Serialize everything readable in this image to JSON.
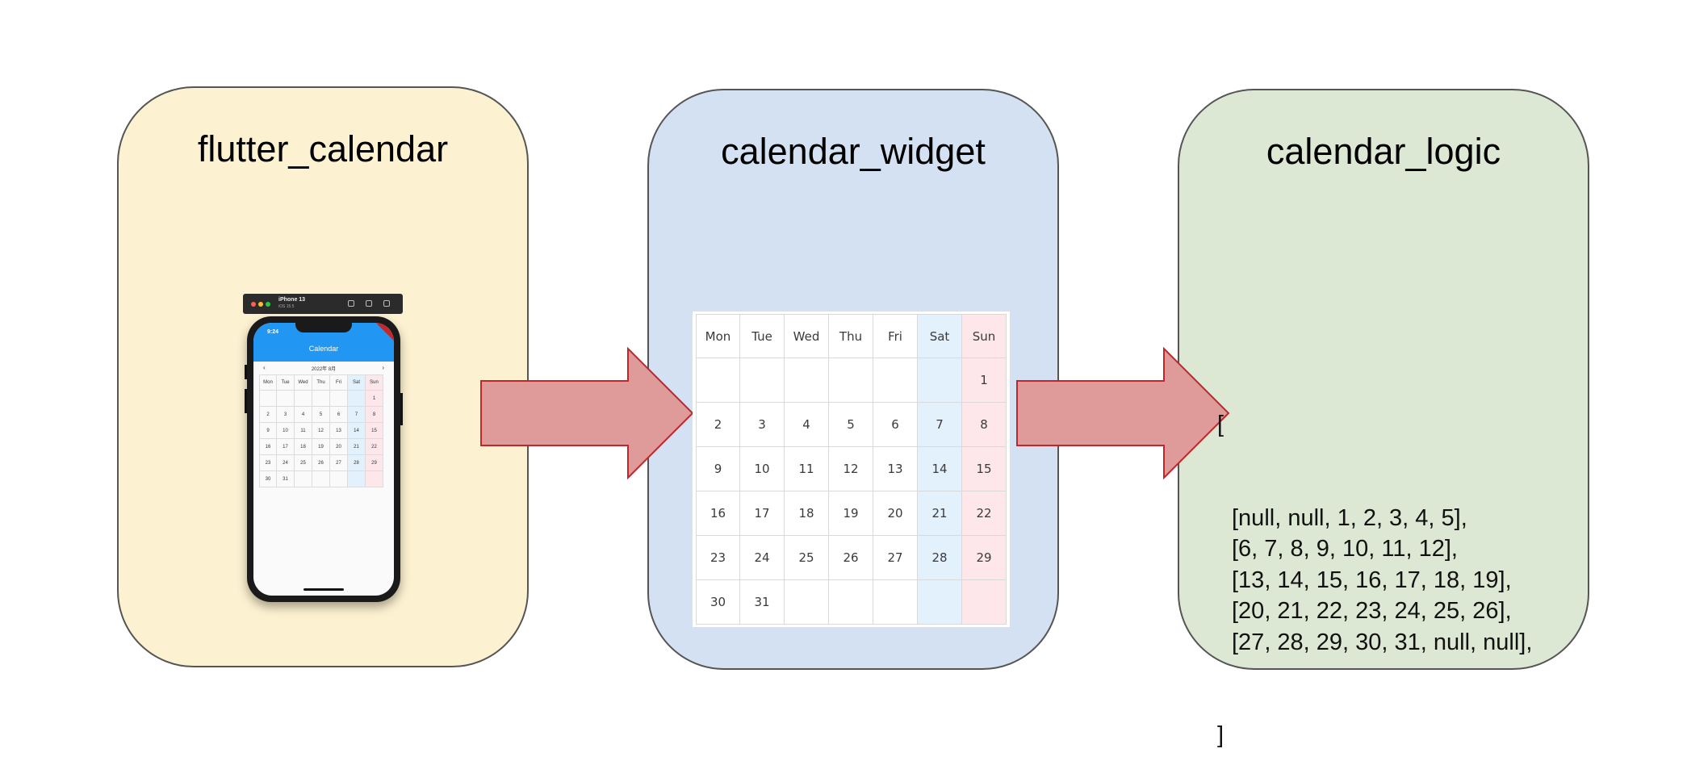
{
  "colors": {
    "panel1": "#fcf1d0",
    "panel2": "#d3e1f2",
    "panel3": "#dde8d4",
    "arrow_fill": "#df9a9a",
    "arrow_stroke": "#c0262a",
    "sat_bg": "#e3f1fd",
    "sun_bg": "#fde7ea"
  },
  "panels": [
    {
      "title": "flutter_calendar"
    },
    {
      "title": "calendar_widget"
    },
    {
      "title": "calendar_logic"
    }
  ],
  "phone": {
    "device_name": "iPhone 13",
    "device_os": "iOS 15.5",
    "time": "9:24",
    "app_title": "Calendar",
    "month_label": "2022年 8月",
    "prev_icon": "chevron-left-icon",
    "next_icon": "chevron-right-icon"
  },
  "calendar": {
    "weekdays": [
      "Mon",
      "Tue",
      "Wed",
      "Thu",
      "Fri",
      "Sat",
      "Sun"
    ],
    "weeks": [
      [
        "",
        "",
        "",
        "",
        "",
        "",
        "1"
      ],
      [
        "2",
        "3",
        "4",
        "5",
        "6",
        "7",
        "8"
      ],
      [
        "9",
        "10",
        "11",
        "12",
        "13",
        "14",
        "15"
      ],
      [
        "16",
        "17",
        "18",
        "19",
        "20",
        "21",
        "22"
      ],
      [
        "23",
        "24",
        "25",
        "26",
        "27",
        "28",
        "29"
      ],
      [
        "30",
        "31",
        "",
        "",
        "",
        "",
        ""
      ]
    ]
  },
  "logic": {
    "open": "[",
    "rows": [
      "[null, null, 1, 2, 3, 4, 5],",
      "[6, 7, 8, 9, 10, 11, 12],",
      "[13, 14, 15, 16, 17, 18, 19],",
      "[20, 21, 22, 23, 24, 25, 26],",
      "[27, 28, 29, 30, 31, null, null],"
    ],
    "close": "]"
  }
}
